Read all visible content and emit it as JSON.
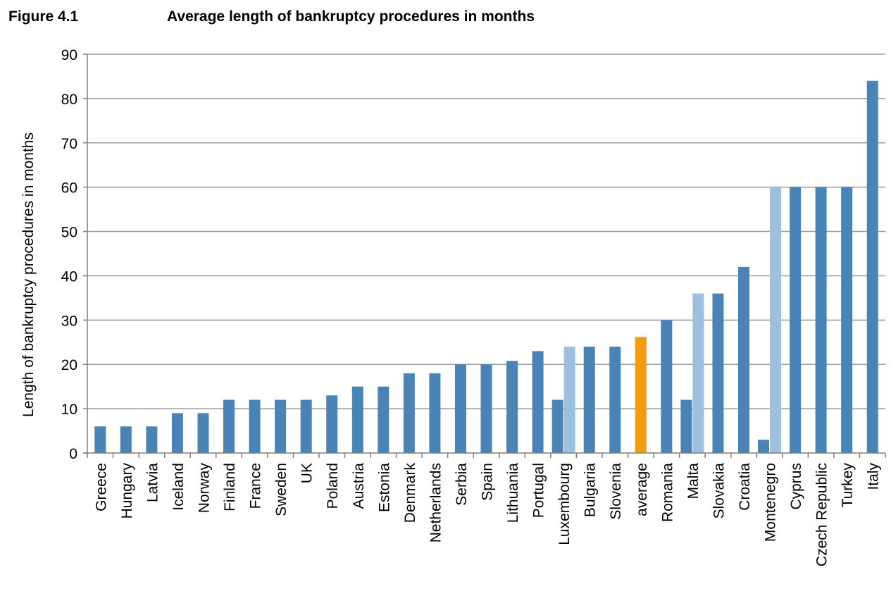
{
  "figure": {
    "label": "Figure 4.1",
    "title": "Average length of bankruptcy procedures in months"
  },
  "colors": {
    "primary": "#4a83b5",
    "secondary": "#9dbfe0",
    "average": "#f39c12",
    "grid": "#9a9a9a",
    "axis": "#7f7f7f"
  },
  "chart_data": {
    "type": "bar",
    "title": "Average length of bankruptcy procedures in months",
    "xlabel": "",
    "ylabel": "Length of bankruptcy procedures in months",
    "ylim": [
      0,
      90
    ],
    "yticks": [
      0,
      10,
      20,
      30,
      40,
      50,
      60,
      70,
      80,
      90
    ],
    "grid": true,
    "categories": [
      "Greece",
      "Hungary",
      "Latvia",
      "Iceland",
      "Norway",
      "Finland",
      "France",
      "Sweden",
      "UK",
      "Poland",
      "Austria",
      "Estonia",
      "Denmark",
      "Netherlands",
      "Serbia",
      "Spain",
      "Lithuania",
      "Portugal",
      "Luxembourg",
      "Bulgaria",
      "Slovenia",
      "average",
      "Romania",
      "Malta",
      "Slovakia",
      "Croatia",
      "Montenegro",
      "Cyprus",
      "Czech Republic",
      "Turkey",
      "Italy"
    ],
    "bars": [
      [
        {
          "value": 6,
          "style": "primary"
        }
      ],
      [
        {
          "value": 6,
          "style": "primary"
        }
      ],
      [
        {
          "value": 6,
          "style": "primary"
        }
      ],
      [
        {
          "value": 9,
          "style": "primary"
        }
      ],
      [
        {
          "value": 9,
          "style": "primary"
        }
      ],
      [
        {
          "value": 12,
          "style": "primary"
        }
      ],
      [
        {
          "value": 12,
          "style": "primary"
        }
      ],
      [
        {
          "value": 12,
          "style": "primary"
        }
      ],
      [
        {
          "value": 12,
          "style": "primary"
        }
      ],
      [
        {
          "value": 13,
          "style": "primary"
        }
      ],
      [
        {
          "value": 15,
          "style": "primary"
        }
      ],
      [
        {
          "value": 15,
          "style": "primary"
        }
      ],
      [
        {
          "value": 18,
          "style": "primary"
        }
      ],
      [
        {
          "value": 18,
          "style": "primary"
        }
      ],
      [
        {
          "value": 20,
          "style": "primary"
        }
      ],
      [
        {
          "value": 20,
          "style": "primary"
        }
      ],
      [
        {
          "value": 20.8,
          "style": "primary"
        }
      ],
      [
        {
          "value": 23,
          "style": "primary"
        }
      ],
      [
        {
          "value": 12,
          "style": "primary"
        },
        {
          "value": 24,
          "style": "secondary"
        }
      ],
      [
        {
          "value": 24,
          "style": "primary"
        }
      ],
      [
        {
          "value": 24,
          "style": "primary"
        }
      ],
      [
        {
          "value": 26.2,
          "style": "average"
        }
      ],
      [
        {
          "value": 30,
          "style": "primary"
        }
      ],
      [
        {
          "value": 12,
          "style": "primary"
        },
        {
          "value": 36,
          "style": "secondary"
        }
      ],
      [
        {
          "value": 36,
          "style": "primary"
        }
      ],
      [
        {
          "value": 42,
          "style": "primary"
        }
      ],
      [
        {
          "value": 3,
          "style": "primary"
        },
        {
          "value": 60,
          "style": "secondary"
        }
      ],
      [
        {
          "value": 60,
          "style": "primary"
        }
      ],
      [
        {
          "value": 60,
          "style": "primary"
        }
      ],
      [
        {
          "value": 60,
          "style": "primary"
        }
      ],
      [
        {
          "value": 84,
          "style": "primary"
        }
      ]
    ]
  }
}
